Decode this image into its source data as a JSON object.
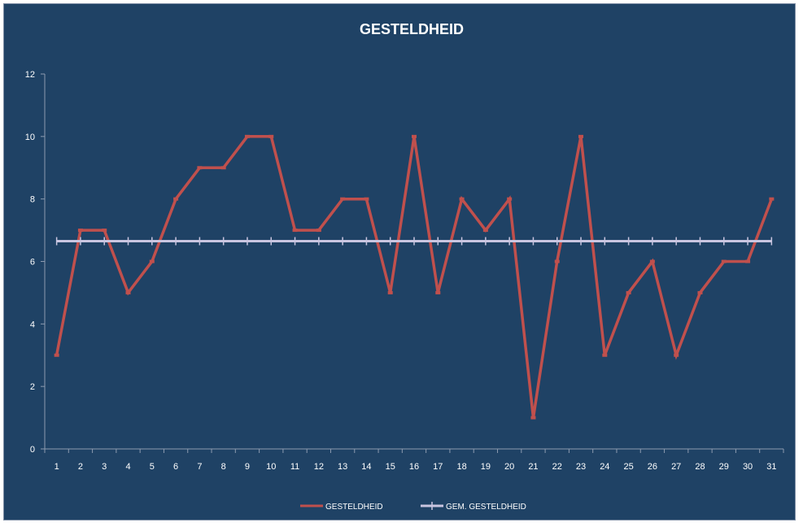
{
  "chart_data": {
    "type": "line",
    "title": "GESTELDHEID",
    "xlabel": "",
    "ylabel": "",
    "categories": [
      "1",
      "2",
      "3",
      "4",
      "5",
      "6",
      "7",
      "8",
      "9",
      "10",
      "11",
      "12",
      "13",
      "14",
      "15",
      "16",
      "17",
      "18",
      "19",
      "20",
      "21",
      "22",
      "23",
      "24",
      "25",
      "26",
      "27",
      "28",
      "29",
      "30",
      "31"
    ],
    "ylim": [
      0,
      12
    ],
    "yticks": [
      0,
      2,
      4,
      6,
      8,
      10,
      12
    ],
    "grid": false,
    "legend_position": "bottom",
    "series": [
      {
        "name": "GESTELDHEID",
        "color": "#c0504d",
        "values": [
          3,
          7,
          7,
          5,
          6,
          8,
          9,
          9,
          10,
          10,
          7,
          7,
          8,
          8,
          5,
          10,
          5,
          8,
          7,
          8,
          1,
          6,
          10,
          3,
          5,
          6,
          3,
          5,
          6,
          6,
          8
        ]
      },
      {
        "name": "GEM. GESTELDHEID",
        "color": "#c9c5e0",
        "values": [
          6.65,
          6.65,
          6.65,
          6.65,
          6.65,
          6.65,
          6.65,
          6.65,
          6.65,
          6.65,
          6.65,
          6.65,
          6.65,
          6.65,
          6.65,
          6.65,
          6.65,
          6.65,
          6.65,
          6.65,
          6.65,
          6.65,
          6.65,
          6.65,
          6.65,
          6.65,
          6.65,
          6.65,
          6.65,
          6.65,
          6.65
        ]
      }
    ]
  }
}
